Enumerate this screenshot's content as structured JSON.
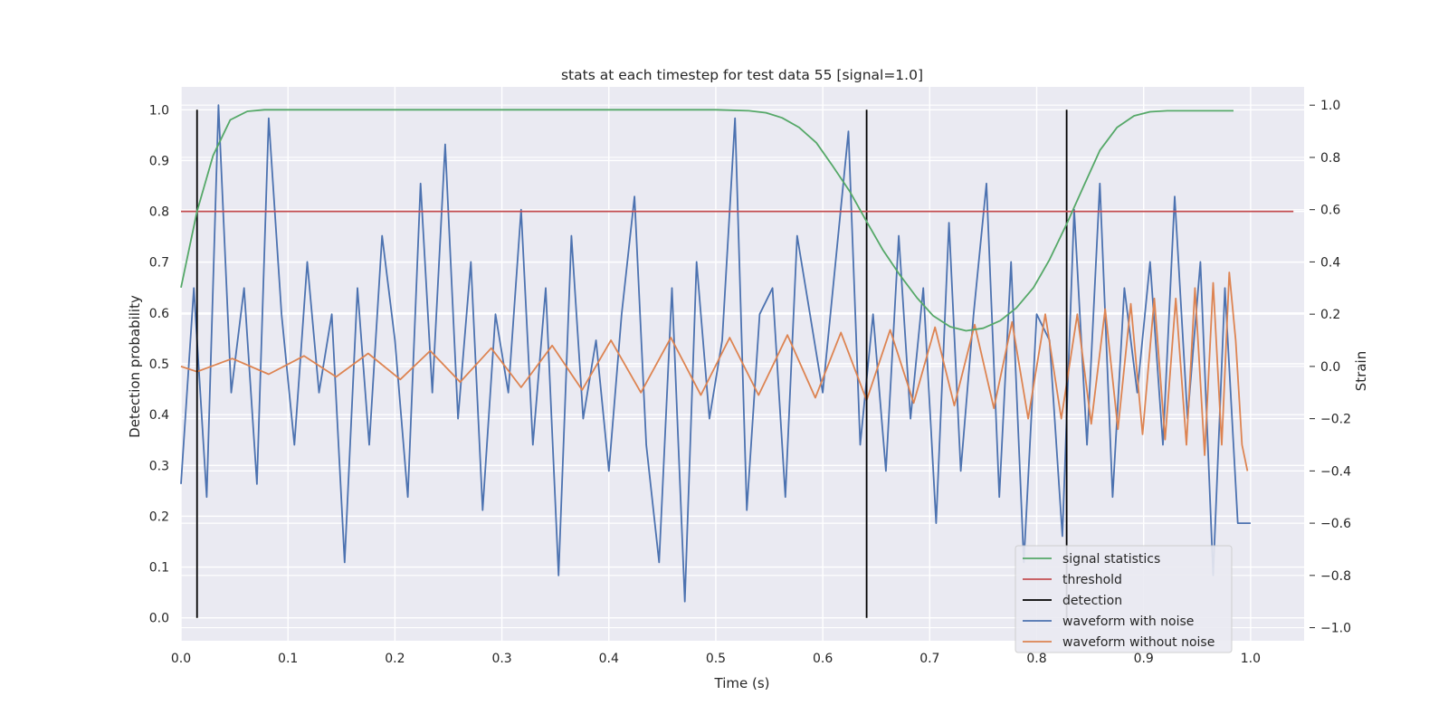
{
  "chart_data": {
    "type": "line",
    "title": "stats at each timestep for test data 55 [signal=1.0]",
    "xlabel": "Time (s)",
    "ylabel_left": "Detection probability",
    "ylabel_right": "Strain",
    "xlim": [
      0.0,
      1.05
    ],
    "ylim_left": [
      -0.045,
      1.045
    ],
    "ylim_right": [
      -1.05,
      1.07
    ],
    "x_ticks": [
      "0.0",
      "0.1",
      "0.2",
      "0.3",
      "0.4",
      "0.5",
      "0.6",
      "0.7",
      "0.8",
      "0.9",
      "1.0"
    ],
    "y_left_ticks": [
      "0.0",
      "0.1",
      "0.2",
      "0.3",
      "0.4",
      "0.5",
      "0.6",
      "0.7",
      "0.8",
      "0.9",
      "1.0"
    ],
    "y_right_ticks": [
      "−1.0",
      "−0.8",
      "−0.6",
      "−0.4",
      "−0.2",
      "0.0",
      "0.2",
      "0.4",
      "0.6",
      "0.8",
      "1.0"
    ],
    "grid": true,
    "legend_position": "lower-right",
    "series": [
      {
        "name": "signal statistics",
        "axis": "left",
        "color": "#55a868",
        "x": [
          0.0,
          0.015,
          0.03,
          0.046,
          0.062,
          0.078,
          0.094,
          0.2,
          0.3,
          0.4,
          0.5,
          0.531,
          0.547,
          0.562,
          0.578,
          0.594,
          0.609,
          0.625,
          0.641,
          0.656,
          0.672,
          0.688,
          0.703,
          0.719,
          0.734,
          0.75,
          0.766,
          0.781,
          0.797,
          0.812,
          0.828,
          0.844,
          0.859,
          0.875,
          0.891,
          0.906,
          0.922,
          0.938,
          0.984
        ],
        "values": [
          0.65,
          0.8,
          0.91,
          0.98,
          0.997,
          1.0,
          1.0,
          1.0,
          1.0,
          1.0,
          1.0,
          0.998,
          0.994,
          0.984,
          0.965,
          0.935,
          0.89,
          0.84,
          0.78,
          0.725,
          0.675,
          0.63,
          0.595,
          0.573,
          0.565,
          0.57,
          0.585,
          0.61,
          0.65,
          0.705,
          0.775,
          0.85,
          0.92,
          0.965,
          0.988,
          0.996,
          0.998,
          0.998,
          0.998
        ]
      },
      {
        "name": "threshold",
        "axis": "left",
        "color": "#c44e52",
        "x": [
          0.0,
          1.04
        ],
        "values": [
          0.8,
          0.8
        ]
      },
      {
        "name": "detection",
        "axis": "left",
        "color": "#000000",
        "x": [
          0.015,
          0.641,
          0.828
        ],
        "values": [
          1.0,
          1.0,
          1.0
        ]
      },
      {
        "name": "waveform with noise",
        "axis": "right",
        "color": "#4c72b0",
        "x": [
          0.0,
          0.012,
          0.024,
          0.035,
          0.047,
          0.059,
          0.071,
          0.082,
          0.094,
          0.106,
          0.118,
          0.129,
          0.141,
          0.153,
          0.165,
          0.176,
          0.188,
          0.2,
          0.212,
          0.224,
          0.235,
          0.247,
          0.259,
          0.271,
          0.282,
          0.294,
          0.306,
          0.318,
          0.329,
          0.341,
          0.353,
          0.365,
          0.376,
          0.388,
          0.4,
          0.412,
          0.424,
          0.435,
          0.447,
          0.459,
          0.471,
          0.482,
          0.494,
          0.506,
          0.518,
          0.529,
          0.541,
          0.553,
          0.565,
          0.576,
          0.588,
          0.6,
          0.612,
          0.624,
          0.635,
          0.647,
          0.659,
          0.671,
          0.682,
          0.694,
          0.706,
          0.718,
          0.729,
          0.741,
          0.753,
          0.765,
          0.776,
          0.788,
          0.8,
          0.812,
          0.824,
          0.835,
          0.847,
          0.859,
          0.871,
          0.882,
          0.894,
          0.906,
          0.918,
          0.929,
          0.941,
          0.953,
          0.965,
          0.976,
          0.988,
          1.0
        ],
        "values": [
          -0.45,
          0.3,
          -0.5,
          1.0,
          -0.1,
          0.3,
          -0.45,
          0.95,
          0.2,
          -0.3,
          0.4,
          -0.1,
          0.2,
          -0.75,
          0.3,
          -0.3,
          0.5,
          0.1,
          -0.5,
          0.7,
          -0.1,
          0.85,
          -0.2,
          0.4,
          -0.55,
          0.2,
          -0.1,
          0.6,
          -0.3,
          0.3,
          -0.8,
          0.5,
          -0.2,
          0.1,
          -0.4,
          0.2,
          0.65,
          -0.3,
          -0.75,
          0.3,
          -0.9,
          0.4,
          -0.2,
          0.1,
          0.95,
          -0.55,
          0.2,
          0.3,
          -0.5,
          0.5,
          0.2,
          -0.1,
          0.4,
          0.9,
          -0.3,
          0.2,
          -0.4,
          0.5,
          -0.2,
          0.3,
          -0.6,
          0.55,
          -0.4,
          0.2,
          0.7,
          -0.5,
          0.4,
          -0.75,
          0.2,
          0.1,
          -0.65,
          0.6,
          -0.3,
          0.7,
          -0.5,
          0.3,
          -0.1,
          0.4,
          -0.3,
          0.65,
          -0.2,
          0.4,
          -0.8,
          0.3,
          -0.6,
          -0.6
        ]
      },
      {
        "name": "waveform without noise",
        "axis": "right",
        "color": "#dd8452",
        "x": [
          0.0,
          0.015,
          0.048,
          0.082,
          0.115,
          0.145,
          0.175,
          0.205,
          0.233,
          0.261,
          0.29,
          0.318,
          0.347,
          0.375,
          0.402,
          0.43,
          0.458,
          0.486,
          0.513,
          0.54,
          0.567,
          0.593,
          0.617,
          0.641,
          0.663,
          0.685,
          0.705,
          0.723,
          0.742,
          0.76,
          0.777,
          0.792,
          0.808,
          0.823,
          0.838,
          0.851,
          0.864,
          0.876,
          0.888,
          0.899,
          0.91,
          0.92,
          0.93,
          0.94,
          0.948,
          0.957,
          0.965,
          0.973,
          0.98,
          0.986,
          0.992,
          0.997
        ],
        "values": [
          0.0,
          -0.02,
          0.03,
          -0.03,
          0.04,
          -0.04,
          0.05,
          -0.05,
          0.06,
          -0.06,
          0.07,
          -0.08,
          0.08,
          -0.09,
          0.1,
          -0.1,
          0.11,
          -0.11,
          0.11,
          -0.11,
          0.12,
          -0.12,
          0.13,
          -0.13,
          0.14,
          -0.14,
          0.15,
          -0.15,
          0.16,
          -0.16,
          0.17,
          -0.2,
          0.2,
          -0.2,
          0.2,
          -0.22,
          0.22,
          -0.24,
          0.24,
          -0.26,
          0.26,
          -0.28,
          0.26,
          -0.3,
          0.3,
          -0.34,
          0.32,
          -0.3,
          0.36,
          0.1,
          -0.3,
          -0.4
        ]
      }
    ]
  }
}
